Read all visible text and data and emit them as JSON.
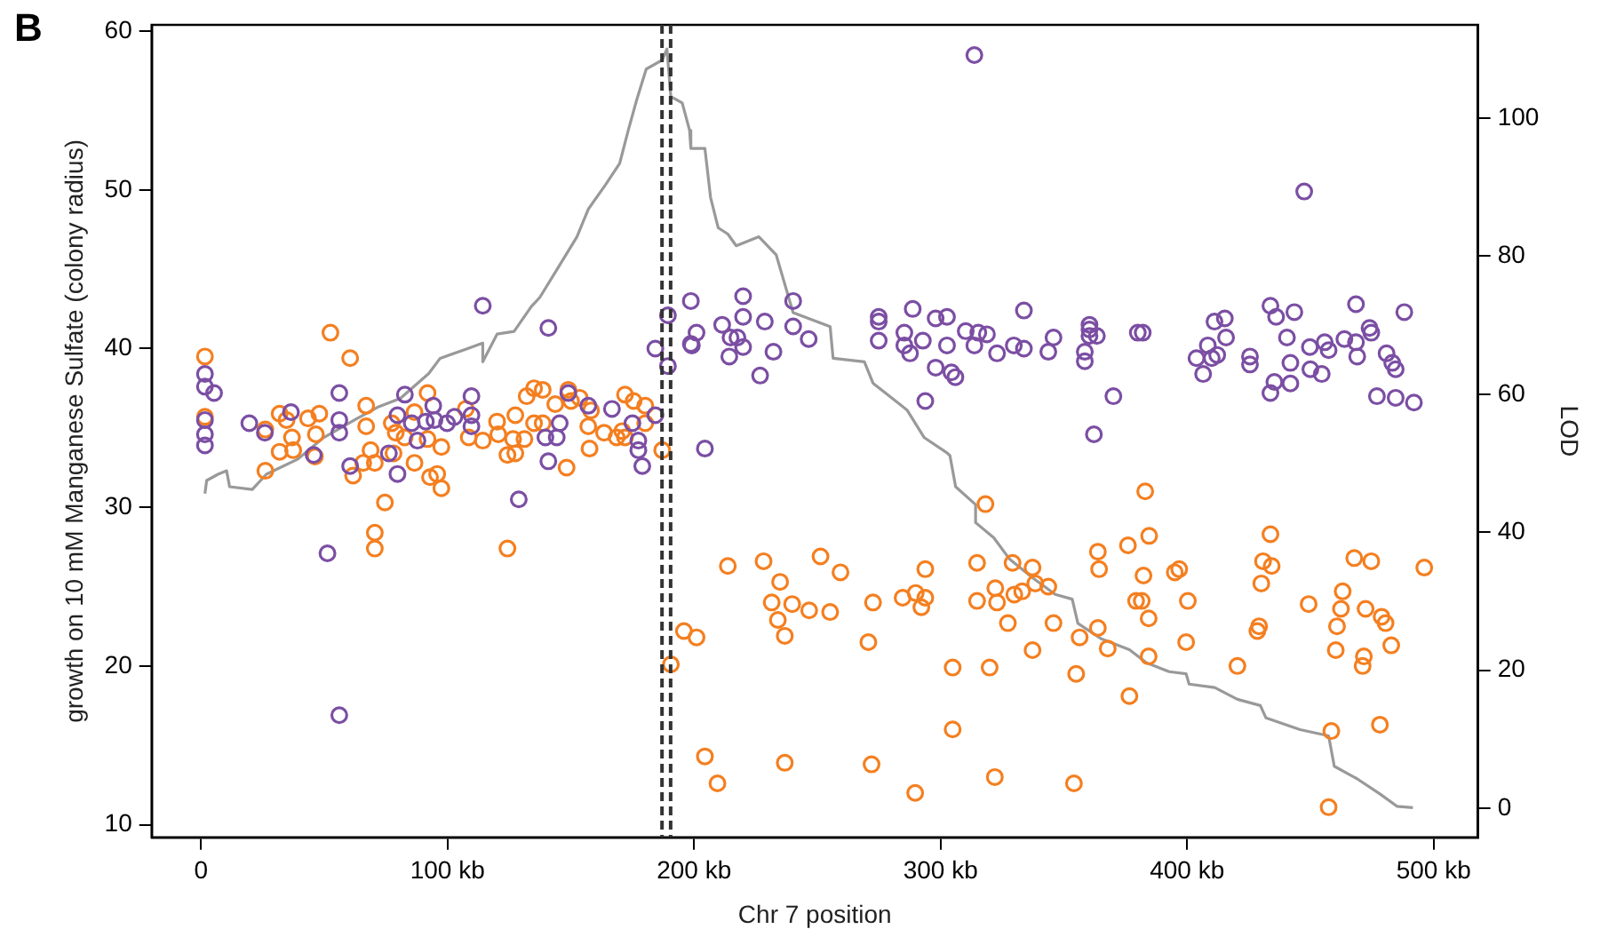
{
  "chart_data": {
    "type": "scatter",
    "xlabel": "Chr 7 position",
    "ylabel": "growth on 10 mM Manganese Sulfate (colony radius)",
    "y2label": "LOD",
    "annotations": [
      "B"
    ],
    "xlim": [
      -20,
      518
    ],
    "xticks": [
      {
        "value": 0,
        "label": "0"
      },
      {
        "value": 100,
        "label": "100 kb"
      },
      {
        "value": 200,
        "label": "200 kb"
      },
      {
        "value": 300,
        "label": "300 kb"
      },
      {
        "value": 400,
        "label": "400 kb"
      },
      {
        "value": 500,
        "label": "500 kb"
      }
    ],
    "ylim": [
      9.2,
      60.4
    ],
    "yticks": [
      10,
      20,
      30,
      40,
      50,
      60
    ],
    "y2lim": [
      -4.2,
      113.5
    ],
    "y2ticks": [
      0,
      20,
      40,
      60,
      80,
      100
    ],
    "grid": false,
    "legend": false,
    "marker": "circle",
    "ref_lines": [
      {
        "axis": "x",
        "value": 187,
        "color": "#333333",
        "line_style": "dashed"
      },
      {
        "axis": "x",
        "value": 190.5,
        "color": "#333333",
        "line_style": "dashed"
      }
    ],
    "series": [
      {
        "type": "scatter",
        "color": "#7b4ea3",
        "x": [
          1.6,
          1.6,
          5.3,
          1.6,
          1.6,
          1.6,
          19.6,
          25.9,
          36.5,
          56.1,
          56.1,
          56.1,
          45.7,
          51.3,
          56.1,
          114.3,
          140.9,
          60.5,
          79.7,
          82.7,
          79.7,
          85.5,
          91.2,
          94.2,
          94.7,
          87.8,
          76.2,
          99.8,
          102.8,
          109.7,
          109.7,
          109.7,
          128.9,
          140.9,
          139.7,
          144.3,
          145.5,
          149,
          157.1,
          166.7,
          175,
          177.4,
          177.4,
          179,
          184.3,
          184.3,
          189.4,
          198.7,
          198.7,
          189.4,
          201,
          199.1,
          204.4,
          211.4,
          214.8,
          217.6,
          219.9,
          219.9,
          219.9,
          214.3,
          228.7,
          226.8,
          232.2,
          240.2,
          240.2,
          246.5,
          274.9,
          274.9,
          274.9,
          285.3,
          285.3,
          287.6,
          288.7,
          292.8,
          293.8,
          298,
          302.6,
          302.6,
          298,
          304.4,
          306,
          310.2,
          313.7,
          315.3,
          318.8,
          322.9,
          329.7,
          333.8,
          333.8,
          343.7,
          345.8,
          360.4,
          360.4,
          360.4,
          363.4,
          358.5,
          358.5,
          370.1,
          362.2,
          380,
          382,
          403.8,
          406.5,
          408.4,
          410,
          411.1,
          412.2,
          415.3,
          415.8,
          425.5,
          425.5,
          433.8,
          436.1,
          433.8,
          435.4,
          440.5,
          441.9,
          441.9,
          443.5,
          449.8,
          450,
          454.6,
          455.8,
          457.4,
          463.8,
          468.5,
          468.5,
          469,
          474,
          474.7,
          477,
          480.9,
          483.2,
          484.6,
          484.6,
          488.1,
          492,
          313.7,
          447.5
        ],
        "values": [
          38.4,
          37.6,
          37.2,
          35.5,
          34.6,
          33.9,
          35.3,
          34.7,
          36.0,
          37.2,
          35.5,
          34.7,
          33.3,
          27.1,
          16.9,
          42.7,
          41.3,
          32.6,
          32.1,
          37.1,
          35.8,
          35.3,
          35.4,
          36.4,
          35.5,
          34.2,
          33.4,
          35.3,
          35.7,
          37.0,
          35.8,
          35.1,
          30.5,
          32.9,
          34.4,
          34.4,
          35.3,
          37.2,
          36.4,
          36.2,
          35.3,
          34.2,
          33.6,
          32.6,
          35.8,
          40.0,
          42.1,
          43.0,
          40.3,
          38.9,
          41.0,
          40.2,
          33.7,
          41.5,
          40.7,
          40.7,
          43.3,
          42.0,
          40.1,
          39.5,
          41.7,
          38.3,
          39.8,
          43.0,
          41.4,
          40.6,
          42.0,
          41.7,
          40.5,
          41.0,
          40.2,
          39.7,
          42.5,
          40.5,
          36.7,
          41.9,
          42.0,
          40.2,
          38.8,
          38.5,
          38.2,
          41.1,
          40.2,
          41.0,
          40.9,
          39.7,
          40.2,
          42.4,
          40.0,
          39.8,
          40.7,
          41.5,
          41.2,
          40.8,
          40.8,
          39.8,
          39.2,
          37.0,
          34.6,
          41.0,
          41.0,
          39.4,
          38.4,
          40.2,
          39.4,
          41.7,
          39.6,
          41.9,
          40.7,
          39.5,
          39.0,
          42.7,
          42.0,
          37.2,
          37.9,
          40.7,
          39.1,
          37.8,
          42.3,
          40.1,
          38.7,
          38.4,
          40.4,
          39.9,
          40.6,
          42.8,
          40.4,
          39.5,
          41.3,
          41.0,
          37.0,
          39.7,
          39.1,
          38.7,
          36.9,
          42.3,
          36.6,
          58.5,
          49.9
        ]
      },
      {
        "type": "scatter",
        "color": "#f47f20",
        "x": [
          1.6,
          1.6,
          52.5,
          60.5,
          26.1,
          26.1,
          31.9,
          31.9,
          34.7,
          36.9,
          37.4,
          43.4,
          48,
          46.6,
          46.2,
          67,
          67,
          68.8,
          65.8,
          70.5,
          61.7,
          74.6,
          70.5,
          70.5,
          77.4,
          79,
          78.1,
          82.6,
          86.6,
          86.6,
          91.9,
          91.9,
          97.5,
          92.9,
          95.8,
          97.5,
          107.4,
          108.6,
          114.3,
          120.1,
          120.6,
          124.3,
          124.3,
          126.6,
          127.5,
          127.5,
          131.2,
          132.1,
          135.1,
          138.6,
          135.1,
          138.6,
          143.7,
          149,
          148.3,
          150.1,
          153.6,
          158.2,
          157.1,
          157.6,
          163.5,
          168.6,
          170.9,
          172,
          175.5,
          180.2,
          180.2,
          172,
          187.1,
          195.9,
          201,
          190.6,
          204.4,
          209.5,
          213.7,
          228.2,
          234.9,
          231.5,
          239.8,
          234,
          236.8,
          236.8,
          246.7,
          251.3,
          255.2,
          259.4,
          270.7,
          272,
          272.6,
          284.6,
          289.9,
          292.2,
          293.8,
          293.8,
          289.7,
          304.9,
          304.9,
          314.8,
          314.8,
          318.2,
          319.9,
          322.2,
          322.9,
          322,
          327.3,
          329.2,
          329.9,
          333.1,
          337.3,
          338.4,
          337.3,
          343.7,
          345.8,
          355,
          354.1,
          356.4,
          363.8,
          364.3,
          363.8,
          367.8,
          376.6,
          376,
          383,
          384.6,
          382.3,
          379.3,
          381.6,
          384.4,
          384.4,
          395,
          396.8,
          400.3,
          399.6,
          420.4,
          430.1,
          430.8,
          434.3,
          433.8,
          429.2,
          428.5,
          449.3,
          458.5,
          457.4,
          463.1,
          462.4,
          460.8,
          460.3,
          467.8,
          474.7,
          472.4,
          471.7,
          471.2,
          478.9,
          480.5,
          482.8,
          478.2,
          496.2
        ],
        "values": [
          39.5,
          35.7,
          41.0,
          39.4,
          34.9,
          32.3,
          35.9,
          33.5,
          35.5,
          34.4,
          33.6,
          35.6,
          35.9,
          34.6,
          33.2,
          36.4,
          35.1,
          33.6,
          32.8,
          32.8,
          32.0,
          30.3,
          28.4,
          27.4,
          35.3,
          34.7,
          33.4,
          34.4,
          36.0,
          32.8,
          37.2,
          34.3,
          33.8,
          31.9,
          32.1,
          31.2,
          36.2,
          34.4,
          34.2,
          35.4,
          34.6,
          33.3,
          27.4,
          34.3,
          35.8,
          33.4,
          34.3,
          37.0,
          37.5,
          37.4,
          35.3,
          35.3,
          36.5,
          37.4,
          32.5,
          36.7,
          36.9,
          36.1,
          35.1,
          33.7,
          34.7,
          34.4,
          34.8,
          37.1,
          36.7,
          36.4,
          35.3,
          34.4,
          33.6,
          22.2,
          21.8,
          20.1,
          14.3,
          12.6,
          26.3,
          26.6,
          25.3,
          24.0,
          23.9,
          22.9,
          21.9,
          13.9,
          23.5,
          26.9,
          23.4,
          25.9,
          21.5,
          13.8,
          24.0,
          24.3,
          24.6,
          23.7,
          24.3,
          26.1,
          12.0,
          19.9,
          16.0,
          26.5,
          24.1,
          30.2,
          19.9,
          24.9,
          24.0,
          13.0,
          22.7,
          26.5,
          24.5,
          24.7,
          26.2,
          25.2,
          21.0,
          25.0,
          22.7,
          19.5,
          12.6,
          21.8,
          27.2,
          26.1,
          22.4,
          21.1,
          18.1,
          27.6,
          31.0,
          28.2,
          25.7,
          24.1,
          24.1,
          23.0,
          20.6,
          25.9,
          26.1,
          24.1,
          21.5,
          20.0,
          25.2,
          26.6,
          26.3,
          28.3,
          22.5,
          22.2,
          23.9,
          15.9,
          11.1,
          24.7,
          23.6,
          22.5,
          21.0,
          26.8,
          26.6,
          23.6,
          20.6,
          20.0,
          23.1,
          22.7,
          21.3,
          16.3,
          26.2
        ]
      },
      {
        "type": "line",
        "axis": "y2",
        "color": "#999999",
        "marker": "none",
        "x": [
          1.6,
          2.3,
          6.9,
          10.4,
          11.6,
          20.8,
          26.5,
          39.3,
          49.7,
          62.4,
          71.6,
          80.9,
          92.4,
          97,
          107.4,
          114.3,
          114.3,
          120.1,
          127,
          134,
          137.4,
          144.3,
          152.5,
          157.1,
          164,
          169.8,
          173.3,
          176.7,
          180.6,
          187.1,
          189,
          190.6,
          195.2,
          198.2,
          198.7,
          204.4,
          206.7,
          209.8,
          213.7,
          217.1,
          226.3,
          233.3,
          240.2,
          255.2,
          256.4,
          269.1,
          272.6,
          286.4,
          293.4,
          302.6,
          303.8,
          306.1,
          314.2,
          314.2,
          321.6,
          328,
          337.3,
          346.5,
          353.4,
          355.7,
          365,
          376.6,
          383.5,
          392.7,
          399.6,
          400.8,
          411.2,
          420.4,
          429.7,
          432,
          445.8,
          457.4,
          459.7,
          468.9,
          478.2,
          485.1,
          491.6
        ],
        "values": [
          45.6,
          47.5,
          48.4,
          48.9,
          46.6,
          46.2,
          48.4,
          50.6,
          53.7,
          56.3,
          58.1,
          59.4,
          63.0,
          65.2,
          66.5,
          67.4,
          64.7,
          68.7,
          69.1,
          72.7,
          74.0,
          78.0,
          82.8,
          86.8,
          90.3,
          93.4,
          98.2,
          102.6,
          107.1,
          108.4,
          110.0,
          103.1,
          102.2,
          98.2,
          95.6,
          95.6,
          88.5,
          84.1,
          83.2,
          81.5,
          82.8,
          80.2,
          71.8,
          69.8,
          65.2,
          64.7,
          61.6,
          57.7,
          53.7,
          51.5,
          51.1,
          46.6,
          44.0,
          41.4,
          39.2,
          36.1,
          33.4,
          31.0,
          30.3,
          26.8,
          24.6,
          23.0,
          21.1,
          19.8,
          19.5,
          18.0,
          17.5,
          15.8,
          14.9,
          13.1,
          11.4,
          10.5,
          6.1,
          4.3,
          2.1,
          0.3,
          0.1
        ]
      }
    ]
  }
}
